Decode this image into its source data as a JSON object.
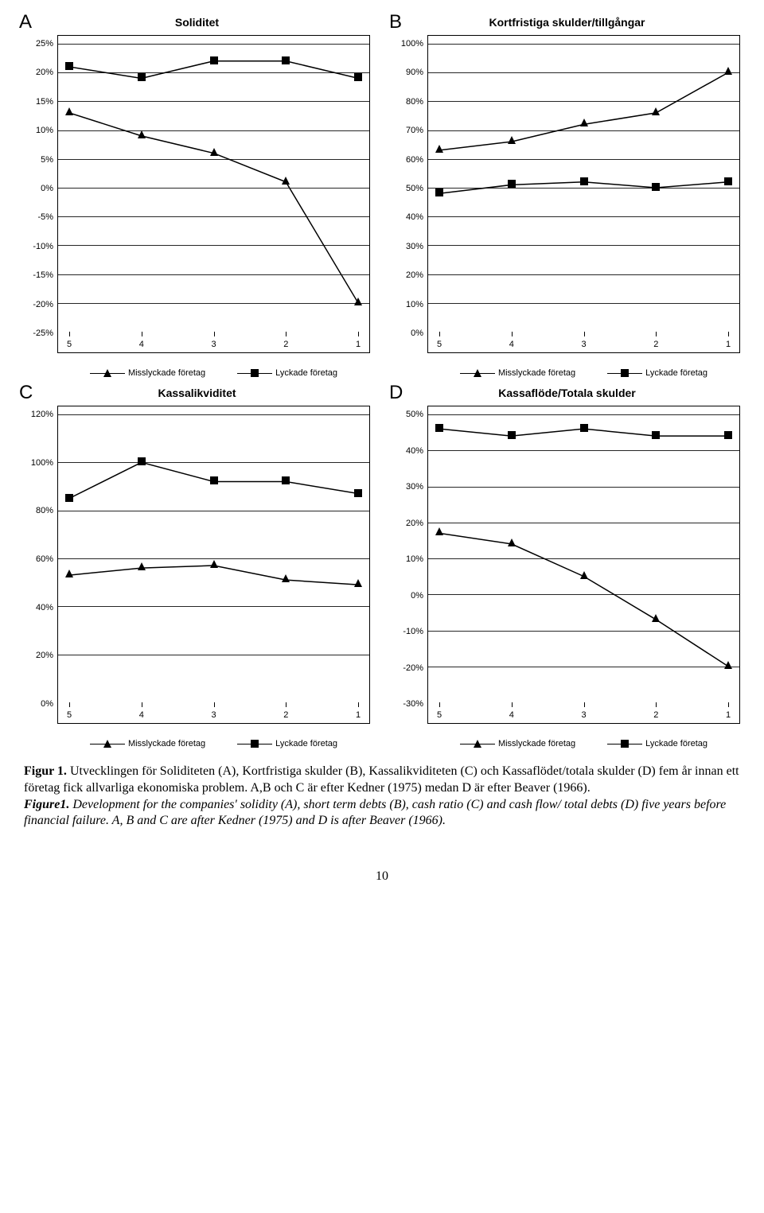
{
  "panels": [
    "A",
    "B",
    "C",
    "D"
  ],
  "x_categories": [
    "5",
    "4",
    "3",
    "2",
    "1"
  ],
  "legend": {
    "series1": "Misslyckade företag",
    "series2": "Lyckade företag"
  },
  "colors": {
    "line": "#000000",
    "marker_fill": "#000000",
    "grid": "#000000",
    "background": "#ffffff"
  },
  "marker": {
    "s1_shape": "triangle",
    "s2_shape": "square",
    "size": 10,
    "line_width": 1.5
  },
  "charts": {
    "A": {
      "title": "Soliditet",
      "ylim": [
        -25,
        25
      ],
      "ytick_step": 5,
      "y_suffix": "%",
      "gridlines_at": [
        25,
        20,
        15,
        10,
        5,
        0,
        -5,
        -10,
        -15,
        -20
      ],
      "series1": [
        13,
        9,
        6,
        1,
        -20
      ],
      "series2": [
        21,
        19,
        22,
        22,
        19
      ]
    },
    "B": {
      "title": "Kortfristiga skulder/tillgångar",
      "ylim": [
        0,
        100
      ],
      "ytick_step": 10,
      "y_suffix": "%",
      "gridlines_at": [
        100,
        90,
        80,
        70,
        60,
        50,
        40,
        30,
        20,
        10
      ],
      "series1": [
        63,
        66,
        72,
        76,
        90
      ],
      "series2": [
        48,
        51,
        52,
        50,
        52
      ]
    },
    "C": {
      "title": "Kassalikviditet",
      "ylim": [
        0,
        120
      ],
      "ytick_step": 20,
      "y_suffix": "%",
      "gridlines_at": [
        120,
        100,
        80,
        60,
        40,
        20
      ],
      "series1": [
        53,
        56,
        57,
        51,
        49
      ],
      "series2": [
        85,
        100,
        92,
        92,
        87
      ]
    },
    "D": {
      "title": "Kassaflöde/Totala skulder",
      "ylim": [
        -30,
        50
      ],
      "ytick_step": 10,
      "y_suffix": "%",
      "gridlines_at": [
        50,
        40,
        30,
        20,
        10,
        0,
        -10,
        -20
      ],
      "series1": [
        17,
        14,
        5,
        -7,
        -20
      ],
      "series2": [
        46,
        44,
        46,
        44,
        44
      ]
    }
  },
  "caption": {
    "lead_sv": "Figur 1.",
    "body_sv": " Utvecklingen för Soliditeten (A), Kortfristiga skulder (B), Kassalikviditeten (C) och Kassaflödet/totala skulder (D) fem år innan ett företag fick allvarliga ekonomiska problem. A,B och C är efter Kedner (1975) medan D är efter Beaver (1966).",
    "lead_en": "Figure1.",
    "body_en": " Development for the companies' solidity (A), short term debts (B), cash ratio (C) and cash flow/ total debts (D) five years before financial failure. A, B and C are after Kedner (1975) and D is after Beaver (1966)."
  },
  "page_number": "10"
}
